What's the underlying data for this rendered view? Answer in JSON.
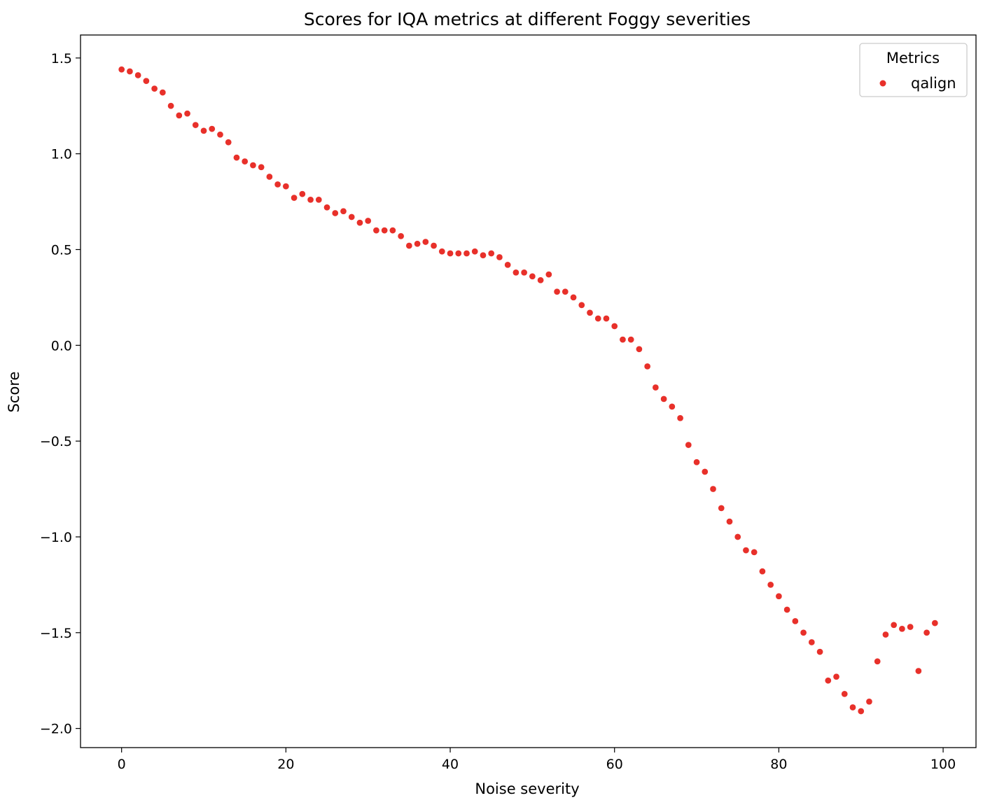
{
  "chart_data": {
    "type": "scatter",
    "title": "Scores for IQA metrics at different Foggy severities",
    "xlabel": "Noise severity",
    "ylabel": "Score",
    "xlim": [
      -5,
      104
    ],
    "ylim": [
      -2.1,
      1.62
    ],
    "xticks": [
      0,
      20,
      40,
      60,
      80,
      100
    ],
    "yticks": [
      1.5,
      1.0,
      0.5,
      0.0,
      -0.5,
      -1.0,
      -1.5,
      -2.0
    ],
    "xtick_labels": [
      "0",
      "20",
      "40",
      "60",
      "80",
      "100"
    ],
    "ytick_labels": [
      "1.5",
      "1.0",
      "0.5",
      "0.0",
      "−0.5",
      "−1.0",
      "−1.5",
      "−2.0"
    ],
    "grid": false,
    "legend": {
      "title": "Metrics",
      "placement": "top-right"
    },
    "series": [
      {
        "name": "qalign",
        "color": "#e8302a",
        "x": [
          0,
          1,
          2,
          3,
          4,
          5,
          6,
          7,
          8,
          9,
          10,
          11,
          12,
          13,
          14,
          15,
          16,
          17,
          18,
          19,
          20,
          21,
          22,
          23,
          24,
          25,
          26,
          27,
          28,
          29,
          30,
          31,
          32,
          33,
          34,
          35,
          36,
          37,
          38,
          39,
          40,
          41,
          42,
          43,
          44,
          45,
          46,
          47,
          48,
          49,
          50,
          51,
          52,
          53,
          54,
          55,
          56,
          57,
          58,
          59,
          60,
          61,
          62,
          63,
          64,
          65,
          66,
          67,
          68,
          69,
          70,
          71,
          72,
          73,
          74,
          75,
          76,
          77,
          78,
          79,
          80,
          81,
          82,
          83,
          84,
          85,
          86,
          87,
          88,
          89,
          90,
          91,
          92,
          93,
          94,
          95,
          96,
          97,
          98,
          99
        ],
        "y": [
          1.44,
          1.43,
          1.41,
          1.38,
          1.34,
          1.32,
          1.25,
          1.2,
          1.21,
          1.15,
          1.12,
          1.13,
          1.1,
          1.06,
          0.98,
          0.96,
          0.94,
          0.93,
          0.88,
          0.84,
          0.83,
          0.77,
          0.79,
          0.76,
          0.76,
          0.72,
          0.69,
          0.7,
          0.67,
          0.64,
          0.65,
          0.6,
          0.6,
          0.6,
          0.57,
          0.52,
          0.53,
          0.54,
          0.52,
          0.49,
          0.48,
          0.48,
          0.48,
          0.49,
          0.47,
          0.48,
          0.46,
          0.42,
          0.38,
          0.38,
          0.36,
          0.34,
          0.37,
          0.28,
          0.28,
          0.25,
          0.21,
          0.17,
          0.14,
          0.14,
          0.1,
          0.03,
          0.03,
          -0.02,
          -0.11,
          -0.22,
          -0.28,
          -0.32,
          -0.38,
          -0.52,
          -0.61,
          -0.66,
          -0.75,
          -0.85,
          -0.92,
          -1.0,
          -1.07,
          -1.08,
          -1.18,
          -1.25,
          -1.31,
          -1.38,
          -1.44,
          -1.5,
          -1.55,
          -1.6,
          -1.75,
          -1.73,
          -1.82,
          -1.89,
          -1.91,
          -1.86,
          -1.65,
          -1.51,
          -1.46,
          -1.48,
          -1.47,
          -1.7,
          -1.5,
          -1.45
        ]
      }
    ]
  }
}
